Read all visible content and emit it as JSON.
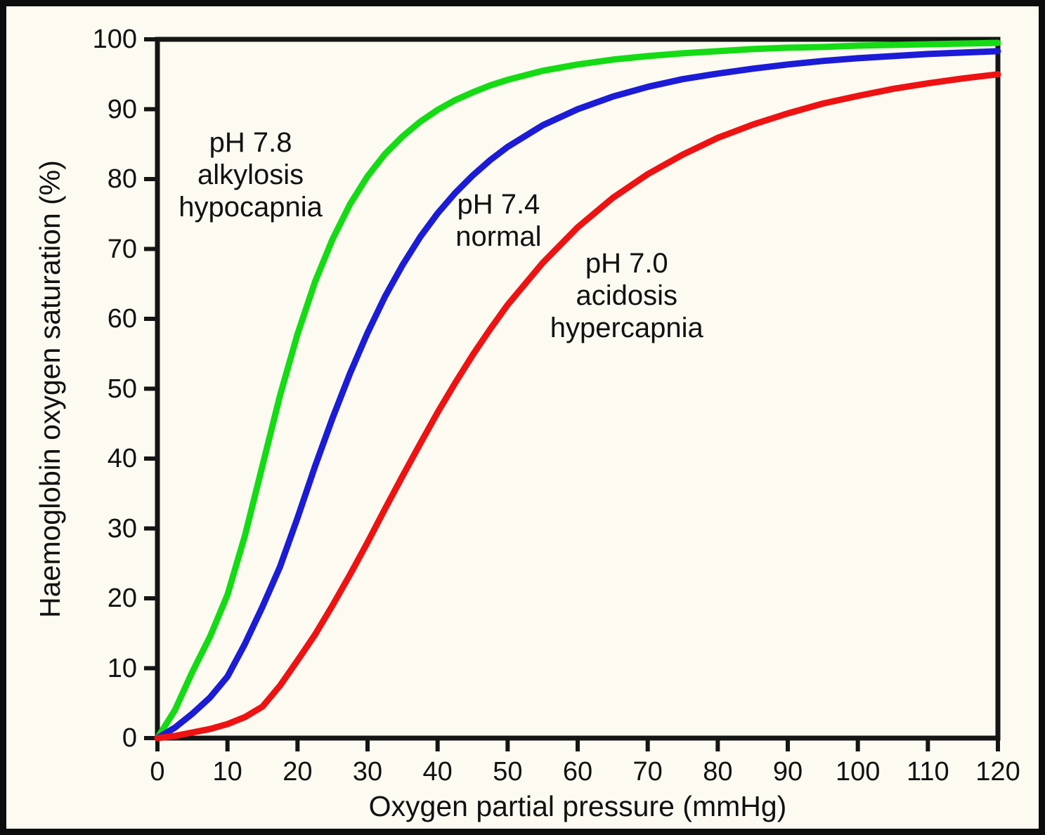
{
  "colors": {
    "background": "#FCFAF1",
    "border": "#0C0C0C",
    "axis": "#151515",
    "text": "#111111",
    "curve_ph78": "#14DB14",
    "curve_ph74": "#1B1BD8",
    "curve_ph70": "#EE1212"
  },
  "chart_data": {
    "type": "line",
    "title": "",
    "xlabel": "Oxygen partial pressure (mmHg)",
    "ylabel": "Haemoglobin oxygen saturation (%)",
    "xlim": [
      0,
      120
    ],
    "ylim": [
      0,
      100
    ],
    "grid": false,
    "legend_position": "none",
    "x_ticks": [
      0,
      10,
      20,
      30,
      40,
      50,
      60,
      70,
      80,
      90,
      100,
      110,
      120
    ],
    "y_ticks": [
      0,
      10,
      20,
      30,
      40,
      50,
      60,
      70,
      80,
      90,
      100
    ],
    "x": [
      0,
      2.5,
      5,
      7.5,
      10,
      12.5,
      15,
      17.5,
      20,
      22.5,
      25,
      27.5,
      30,
      32.5,
      35,
      37.5,
      40,
      42.5,
      45,
      47.5,
      50,
      55,
      60,
      65,
      70,
      75,
      80,
      85,
      90,
      95,
      100,
      105,
      110,
      115,
      120
    ],
    "series": [
      {
        "name": "pH 7.8 alkylosis hypocapnia",
        "color": "#14DB14",
        "p50_mmHg": 17.8,
        "values": [
          0,
          4,
          9.5,
          14.5,
          20.5,
          29,
          39,
          49,
          57.8,
          65.3,
          71.4,
          76.4,
          80.4,
          83.6,
          86.1,
          88.2,
          89.9,
          91.3,
          92.4,
          93.4,
          94.2,
          95.5,
          96.4,
          97.1,
          97.6,
          98.0,
          98.3,
          98.6,
          98.8,
          98.9,
          99.1,
          99.2,
          99.3,
          99.4,
          99.5
        ]
      },
      {
        "name": "pH 7.4 normal",
        "color": "#1B1BD8",
        "p50_mmHg": 26.6,
        "values": [
          0,
          1.5,
          3.5,
          5.8,
          8.8,
          13.5,
          18.8,
          24.5,
          31.5,
          38.9,
          45.8,
          52.2,
          58.0,
          63.2,
          67.7,
          71.7,
          75.1,
          78.0,
          80.5,
          82.7,
          84.6,
          87.7,
          90.0,
          91.8,
          93.2,
          94.3,
          95.1,
          95.8,
          96.4,
          96.9,
          97.3,
          97.6,
          97.9,
          98.1,
          98.3
        ]
      },
      {
        "name": "pH 7.0 acidosis hypercapnia",
        "color": "#EE1212",
        "p50_mmHg": 42.0,
        "values": [
          0,
          0.3,
          0.8,
          1.3,
          2.0,
          3.0,
          4.5,
          7.5,
          11.1,
          14.8,
          19.0,
          23.4,
          28.0,
          32.8,
          37.5,
          42.1,
          46.6,
          50.8,
          54.8,
          58.5,
          62.0,
          68.0,
          73.1,
          77.3,
          80.7,
          83.5,
          85.9,
          87.8,
          89.4,
          90.8,
          91.9,
          92.9,
          93.7,
          94.4,
          95.0
        ]
      }
    ],
    "annotations": [
      {
        "lines": [
          "pH 7.8",
          "alkylosis",
          "hypocapnia"
        ],
        "x": 13.3,
        "y": 80.6
      },
      {
        "lines": [
          "pH 7.4",
          "normal"
        ],
        "x": 48.7,
        "y": 74.1
      },
      {
        "lines": [
          "pH 7.0",
          "acidosis",
          "hypercapnia"
        ],
        "x": 67.0,
        "y": 63.3
      }
    ]
  }
}
